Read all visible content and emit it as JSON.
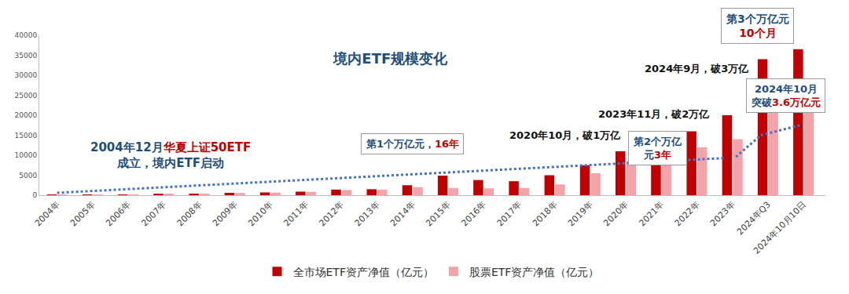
{
  "chart_data": {
    "type": "bar",
    "title": "境内ETF规模变化",
    "categories": [
      "2004年",
      "2005年",
      "2006年",
      "2007年",
      "2008年",
      "2009年",
      "2010年",
      "2011年",
      "2012年",
      "2013年",
      "2014年",
      "2015年",
      "2016年",
      "2017年",
      "2018年",
      "2019年",
      "2020年",
      "2021年",
      "2022年",
      "2023年",
      "2024年Q3",
      "2024年10月10日"
    ],
    "series": [
      {
        "name": "全市场ETF资产净值（亿元）",
        "color": "#c00000",
        "values": [
          20,
          60,
          100,
          350,
          400,
          600,
          700,
          900,
          1400,
          1500,
          2500,
          4900,
          3800,
          3500,
          5000,
          7500,
          11000,
          14500,
          16000,
          20000,
          34000,
          36500
        ]
      },
      {
        "name": "股票ETF资产净值（亿元）",
        "color": "#f4a3a8",
        "values": [
          20,
          50,
          90,
          300,
          350,
          550,
          650,
          850,
          1300,
          1400,
          2000,
          1800,
          1700,
          1800,
          2700,
          5500,
          8500,
          10500,
          12000,
          14000,
          27000,
          29000
        ]
      }
    ],
    "ylim": [
      0,
      40000
    ],
    "yticks": [
      0,
      5000,
      10000,
      15000,
      20000,
      25000,
      30000,
      35000,
      40000
    ],
    "grid": false,
    "legend": "bottom",
    "annotations": [
      {
        "type": "label",
        "lines": [
          [
            {
              "text": "2004年12月",
              "color": "#1f4e79"
            },
            {
              "text": "华夏上证50ETF",
              "color": "#c00000"
            }
          ],
          [
            {
              "text": "成立，境内ETF启动",
              "color": "#1f4e79"
            }
          ]
        ]
      },
      {
        "type": "callout",
        "lines": [
          [
            {
              "text": "第1个万亿元，",
              "color": "#1f4e79"
            },
            {
              "text": "16年",
              "color": "#c00000"
            }
          ]
        ]
      },
      {
        "type": "label",
        "lines": [
          [
            {
              "text": "2020年10月，破1万亿",
              "color": "#111111"
            }
          ]
        ]
      },
      {
        "type": "callout",
        "lines": [
          [
            {
              "text": "第2个万亿",
              "color": "#1f4e79"
            }
          ],
          [
            {
              "text": "元",
              "color": "#1f4e79"
            },
            {
              "text": "3年",
              "color": "#c00000"
            }
          ]
        ]
      },
      {
        "type": "label",
        "lines": [
          [
            {
              "text": "2023年11月，破2万亿",
              "color": "#111111"
            }
          ]
        ]
      },
      {
        "type": "label",
        "lines": [
          [
            {
              "text": "2024年9月，破3万亿",
              "color": "#111111"
            }
          ]
        ]
      },
      {
        "type": "callout",
        "lines": [
          [
            {
              "text": "第3个万亿元",
              "color": "#1f4e79"
            }
          ],
          [
            {
              "text": "10个月",
              "color": "#c00000"
            }
          ]
        ]
      },
      {
        "type": "callout",
        "lines": [
          [
            {
              "text": "2024年10月",
              "color": "#1f4e79"
            }
          ],
          [
            {
              "text": "突破",
              "color": "#1f4e79"
            },
            {
              "text": "3.6万亿元",
              "color": "#c00000"
            }
          ]
        ]
      }
    ]
  }
}
